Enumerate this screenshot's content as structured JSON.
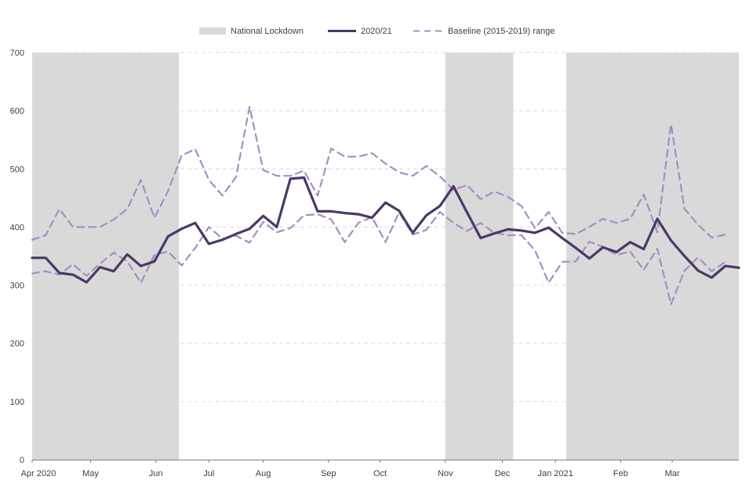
{
  "chart_data": {
    "type": "line",
    "title": "",
    "xlabel": "",
    "ylabel": "",
    "ylim": [
      0,
      700
    ],
    "yticks": [
      0,
      100,
      200,
      300,
      400,
      500,
      600,
      700
    ],
    "grid": true,
    "legend_position": "top-center",
    "legend": {
      "lockdown": "National Lockdown",
      "current": "2020/21",
      "baseline": "Baseline (2015-2019) range"
    },
    "colors": {
      "current": "#4b3868",
      "baseline": "#a38fc0",
      "lockdown": "#d9d9d9",
      "grid": "#d9d9d9",
      "axis": "#7f7f7f"
    },
    "week_count": 52,
    "month_ticks": [
      {
        "label": "Apr 2020",
        "week": 0
      },
      {
        "label": "May",
        "week": 4.3
      },
      {
        "label": "Jun",
        "week": 9.1
      },
      {
        "label": "Jul",
        "week": 13.0
      },
      {
        "label": "Aug",
        "week": 17.0
      },
      {
        "label": "Sep",
        "week": 21.8
      },
      {
        "label": "Oct",
        "week": 25.6
      },
      {
        "label": "Nov",
        "week": 30.4
      },
      {
        "label": "Dec",
        "week": 34.6
      },
      {
        "label": "Jan 2021",
        "week": 38.5
      },
      {
        "label": "Feb",
        "week": 43.3
      },
      {
        "label": "Mar",
        "week": 47.1
      }
    ],
    "lockdown_periods": [
      {
        "start_week": 0,
        "end_week": 10.8
      },
      {
        "start_week": 30.4,
        "end_week": 35.4
      },
      {
        "start_week": 39.3,
        "end_week": 52
      }
    ],
    "series": [
      {
        "name": "2020/21",
        "style": "solid",
        "values": [
          347,
          347,
          321,
          318,
          305,
          331,
          324,
          353,
          333,
          341,
          384,
          397,
          407,
          371,
          378,
          388,
          397,
          419,
          400,
          483,
          485,
          427,
          427,
          424,
          422,
          416,
          442,
          428,
          390,
          420,
          436,
          470,
          425,
          381,
          389,
          396,
          394,
          390,
          399,
          381,
          364,
          346,
          365,
          357,
          374,
          362,
          414,
          377,
          350,
          325,
          313,
          333,
          330
        ]
      },
      {
        "name": "Baseline (2015-2019) range upper",
        "style": "dashed",
        "values": [
          378,
          386,
          431,
          400,
          400,
          400,
          413,
          431,
          481,
          416,
          462,
          523,
          534,
          481,
          454,
          486,
          607,
          498,
          488,
          488,
          497,
          454,
          535,
          521,
          521,
          527,
          509,
          494,
          488,
          505,
          487,
          464,
          472,
          448,
          461,
          452,
          436,
          398,
          426,
          390,
          388,
          400,
          414,
          407,
          414,
          456,
          391,
          577,
          431,
          404,
          382,
          387
        ]
      },
      {
        "name": "Baseline (2015-2019) range lower",
        "style": "dashed",
        "values": [
          320,
          324,
          318,
          336,
          316,
          337,
          356,
          341,
          304,
          352,
          358,
          334,
          364,
          400,
          380,
          385,
          373,
          409,
          391,
          398,
          420,
          422,
          413,
          374,
          407,
          417,
          374,
          425,
          387,
          395,
          426,
          407,
          393,
          407,
          390,
          386,
          386,
          360,
          304,
          340,
          341,
          375,
          366,
          352,
          358,
          326,
          363,
          267,
          325,
          348,
          324,
          340
        ]
      }
    ]
  }
}
